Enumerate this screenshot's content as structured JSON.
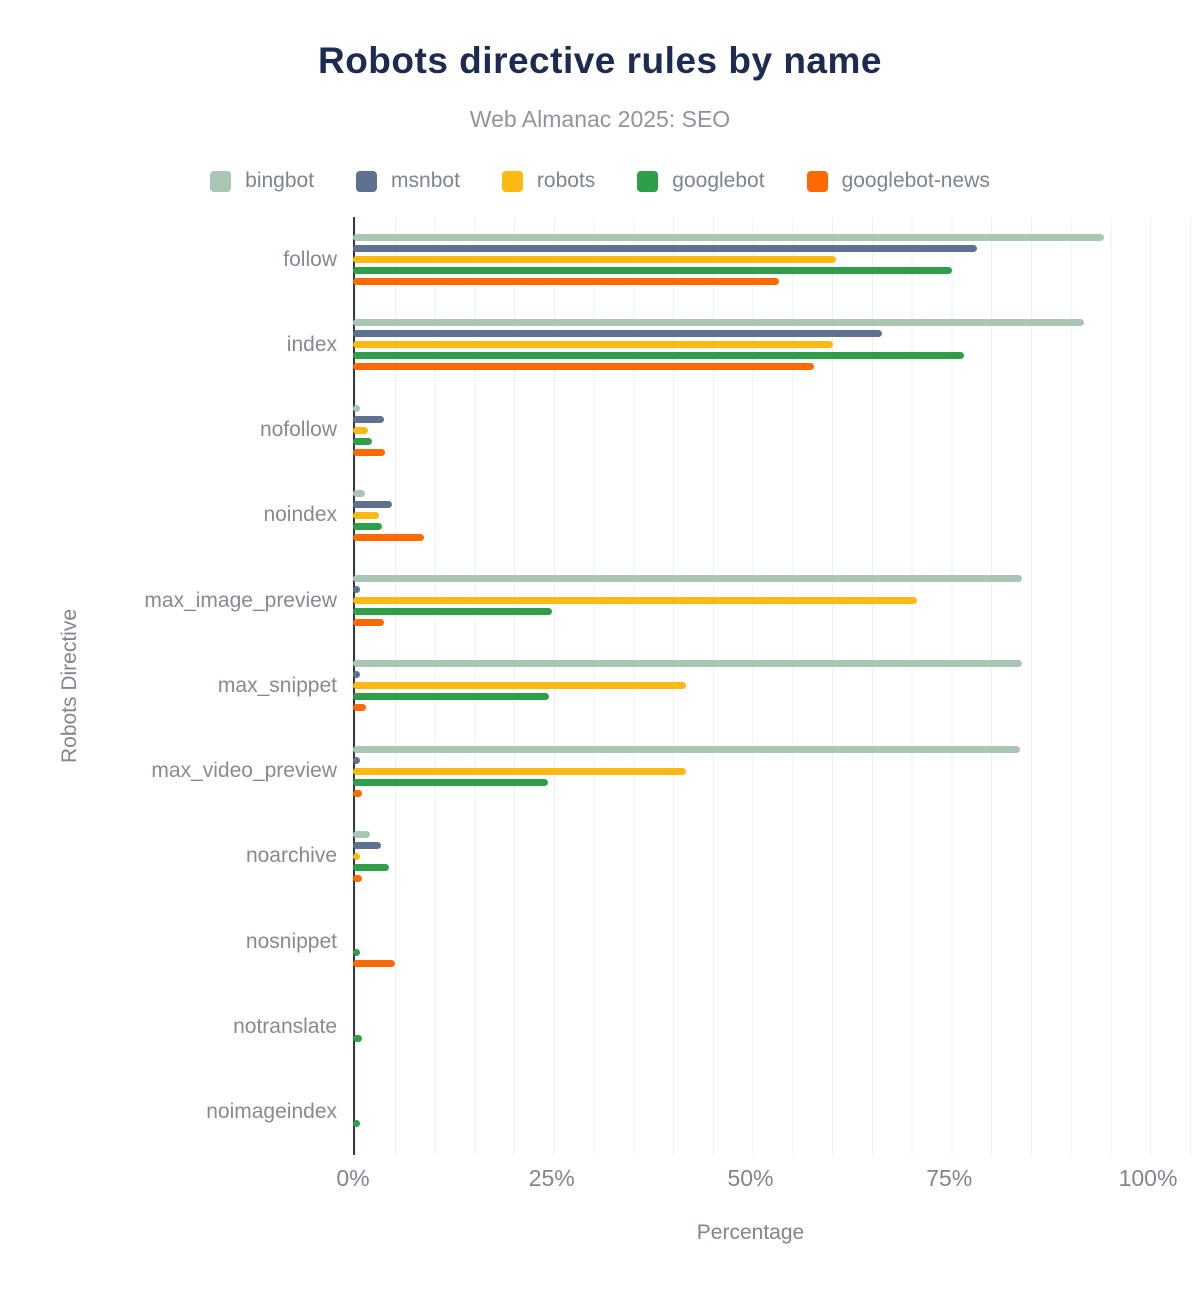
{
  "chart_data": {
    "type": "bar",
    "orientation": "horizontal",
    "title": "Robots directive rules by name",
    "subtitle": "Web Almanac 2025: SEO",
    "xlabel": "Percentage",
    "ylabel": "Robots Directive",
    "xlim": [
      0,
      100
    ],
    "grid": "vertical-minor-every-5pct",
    "legend_position": "top",
    "x_ticks": [
      {
        "label": "0%",
        "value": 0
      },
      {
        "label": "25%",
        "value": 25
      },
      {
        "label": "50%",
        "value": 50
      },
      {
        "label": "75%",
        "value": 75
      },
      {
        "label": "100%",
        "value": 100
      }
    ],
    "categories": [
      "follow",
      "index",
      "nofollow",
      "noindex",
      "max_image_preview",
      "max_snippet",
      "max_video_preview",
      "noarchive",
      "nosnippet",
      "notranslate",
      "noimageindex"
    ],
    "series": [
      {
        "name": "bingbot",
        "color": "#a9c6b5",
        "values": [
          94.5,
          92.0,
          0.9,
          1.5,
          84.1,
          84.2,
          83.9,
          2.2,
          0,
          0,
          0
        ]
      },
      {
        "name": "msnbot",
        "color": "#5e7191",
        "values": [
          78.5,
          66.5,
          3.9,
          4.9,
          0.3,
          0.3,
          0.3,
          3.5,
          0,
          0,
          0
        ]
      },
      {
        "name": "robots",
        "color": "#fcb813",
        "values": [
          60.7,
          60.4,
          1.9,
          3.3,
          70.9,
          41.9,
          41.9,
          0.8,
          0,
          0,
          0
        ]
      },
      {
        "name": "googlebot",
        "color": "#2f9e49",
        "values": [
          75.3,
          76.8,
          2.4,
          3.7,
          25.0,
          24.7,
          24.5,
          4.5,
          0.8,
          1.1,
          0.6
        ]
      },
      {
        "name": "googlebot-news",
        "color": "#fd6903",
        "values": [
          53.6,
          58.0,
          4.0,
          8.9,
          3.9,
          1.6,
          1.1,
          1.1,
          5.3,
          0,
          0
        ]
      }
    ],
    "colors": {
      "title": "#1d2b50",
      "subtitle": "#8e959c",
      "axis_line": "#343a41",
      "gridline": "#edeff2",
      "tick_text": "#7f868d",
      "category_text": "#848b92"
    }
  }
}
